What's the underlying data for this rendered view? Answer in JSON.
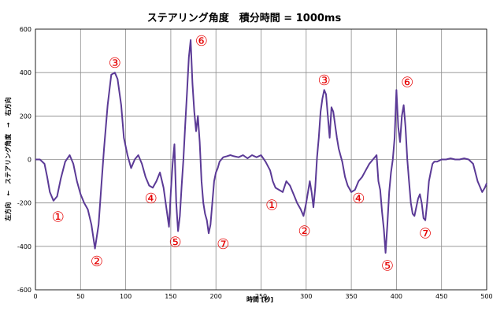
{
  "chart_data": {
    "type": "line",
    "title": "ステアリング角度　積分時間 = 1000ms",
    "xlabel": "時間 [秒]",
    "ylabel": "左方向　←　ステアリング角度　→　右方向",
    "xlim": [
      0,
      500
    ],
    "ylim": [
      -600,
      600
    ],
    "x_ticks": [
      "0",
      "50",
      "100",
      "150",
      "200",
      "250",
      "300",
      "350",
      "400",
      "450",
      "500"
    ],
    "y_ticks": [
      "600",
      "400",
      "200",
      "0",
      "-200",
      "-400",
      "-600"
    ],
    "grid": true,
    "series": [
      {
        "color": "#5b3a96",
        "x": [
          0,
          5,
          10,
          13,
          16,
          20,
          24,
          28,
          33,
          38,
          42,
          46,
          50,
          54,
          58,
          62,
          66,
          70,
          73,
          76,
          80,
          84,
          88,
          91,
          95,
          98,
          102,
          106,
          110,
          114,
          118,
          122,
          126,
          130,
          134,
          138,
          142,
          146,
          148,
          150,
          152,
          154,
          156,
          158,
          160,
          162,
          164,
          166,
          168,
          170,
          172,
          174,
          176,
          178,
          180,
          182,
          184,
          186,
          188,
          190,
          192,
          194,
          196,
          198,
          200,
          202,
          204,
          206,
          208,
          212,
          216,
          220,
          225,
          230,
          235,
          240,
          245,
          250,
          255,
          260,
          263,
          266,
          270,
          274,
          278,
          282,
          286,
          290,
          294,
          297,
          300,
          302,
          304,
          306,
          308,
          310,
          312,
          314,
          316,
          318,
          320,
          322,
          324,
          326,
          328,
          330,
          332,
          334,
          336,
          338,
          340,
          343,
          346,
          350,
          354,
          358,
          362,
          366,
          370,
          374,
          378,
          380,
          382,
          384,
          386,
          388,
          390,
          392,
          394,
          396,
          398,
          400,
          402,
          404,
          406,
          408,
          410,
          412,
          414,
          416,
          418,
          420,
          422,
          424,
          426,
          428,
          430,
          432,
          434,
          436,
          438,
          440,
          442,
          445,
          450,
          455,
          460,
          465,
          470,
          475,
          480,
          485,
          490,
          495,
          498,
          500
        ],
        "y": [
          0,
          0,
          -20,
          -80,
          -150,
          -190,
          -170,
          -90,
          -10,
          20,
          -20,
          -100,
          -160,
          -200,
          -230,
          -300,
          -410,
          -300,
          -120,
          50,
          250,
          390,
          400,
          370,
          250,
          100,
          20,
          -40,
          0,
          20,
          -20,
          -80,
          -120,
          -130,
          -100,
          -60,
          -130,
          -250,
          -310,
          -150,
          -20,
          70,
          -200,
          -330,
          -260,
          -120,
          0,
          160,
          310,
          470,
          550,
          350,
          220,
          130,
          200,
          80,
          -100,
          -200,
          -250,
          -280,
          -340,
          -300,
          -200,
          -100,
          -60,
          -40,
          -10,
          0,
          10,
          15,
          20,
          15,
          10,
          20,
          5,
          20,
          10,
          20,
          -10,
          -50,
          -100,
          -130,
          -140,
          -150,
          -100,
          -120,
          -160,
          -200,
          -230,
          -260,
          -200,
          -150,
          -100,
          -150,
          -220,
          -130,
          10,
          100,
          220,
          280,
          320,
          300,
          200,
          100,
          240,
          220,
          160,
          100,
          50,
          20,
          -10,
          -80,
          -120,
          -150,
          -140,
          -100,
          -80,
          -50,
          -20,
          0,
          20,
          -100,
          -140,
          -240,
          -320,
          -430,
          -300,
          -150,
          -60,
          0,
          100,
          320,
          150,
          80,
          200,
          250,
          150,
          0,
          -100,
          -200,
          -250,
          -260,
          -220,
          -180,
          -160,
          -200,
          -270,
          -280,
          -200,
          -100,
          -60,
          -20,
          -10,
          -10,
          0,
          0,
          5,
          0,
          0,
          5,
          0,
          -20,
          -100,
          -150,
          -130,
          -110
        ]
      }
    ],
    "annotations": [
      {
        "label": "①",
        "x": 25,
        "y": -265
      },
      {
        "label": "②",
        "x": 68,
        "y": -470
      },
      {
        "label": "③",
        "x": 88,
        "y": 445
      },
      {
        "label": "④",
        "x": 128,
        "y": -180
      },
      {
        "label": "⑤",
        "x": 155,
        "y": -380
      },
      {
        "label": "⑥",
        "x": 184,
        "y": 545
      },
      {
        "label": "⑦",
        "x": 208,
        "y": -390
      },
      {
        "label": "①",
        "x": 262,
        "y": -210
      },
      {
        "label": "②",
        "x": 298,
        "y": -330
      },
      {
        "label": "③",
        "x": 320,
        "y": 365
      },
      {
        "label": "④",
        "x": 358,
        "y": -180
      },
      {
        "label": "⑤",
        "x": 390,
        "y": -490
      },
      {
        "label": "⑥",
        "x": 412,
        "y": 355
      },
      {
        "label": "⑦",
        "x": 432,
        "y": -340
      }
    ]
  }
}
